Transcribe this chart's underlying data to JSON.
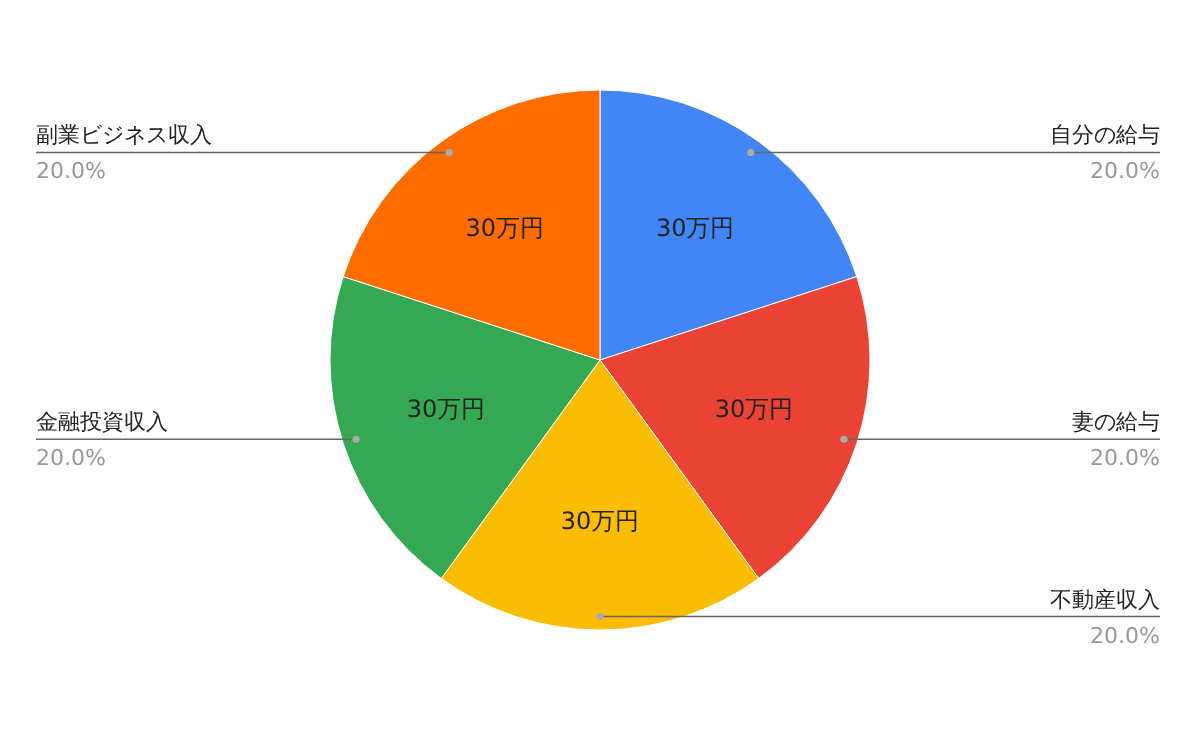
{
  "chart_data": {
    "type": "pie",
    "categories": [
      "自分の給与",
      "妻の給与",
      "不動産収入",
      "金融投資収入",
      "副業ビジネス収入"
    ],
    "values": [
      30,
      30,
      30,
      30,
      30
    ],
    "colors": [
      "#4285f4",
      "#ea4335",
      "#fbbc04",
      "#34a853",
      "#ff6d01"
    ],
    "value_labels": [
      "30万円",
      "30万円",
      "30万円",
      "30万円",
      "30万円"
    ],
    "annotations": [
      "20.0%",
      "20.0%",
      "20.0%",
      "20.0%",
      "20.0%"
    ]
  }
}
